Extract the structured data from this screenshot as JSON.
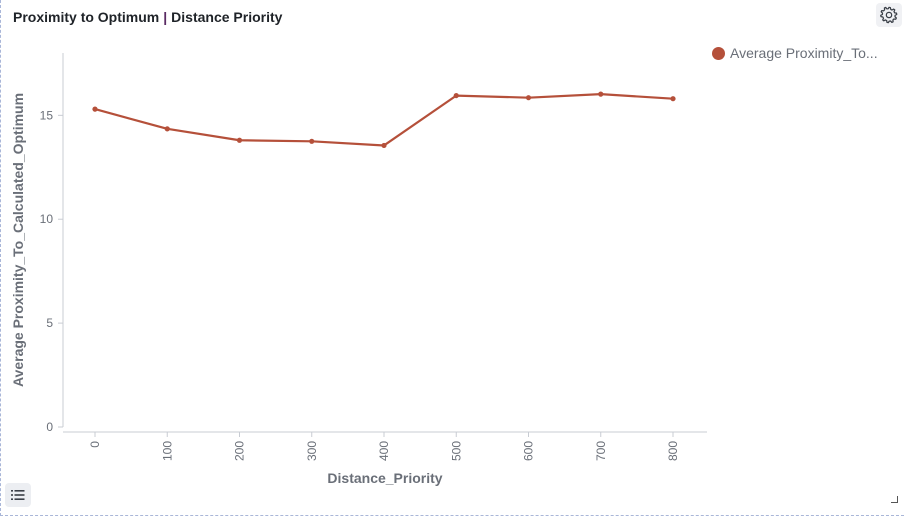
{
  "panel": {
    "title_left": "Proximity to Optimum",
    "title_sep": "|",
    "title_right": "Distance Priority"
  },
  "icons": {
    "settings": "gear-icon",
    "list": "list-icon"
  },
  "chart_data": {
    "type": "line",
    "x": [
      0,
      100,
      200,
      300,
      400,
      500,
      600,
      700,
      800
    ],
    "series": [
      {
        "name": "Average Proximity_To...",
        "color": "#b5503a",
        "values": [
          15.3,
          14.35,
          13.8,
          13.75,
          13.55,
          15.95,
          15.85,
          16.02,
          15.8
        ]
      }
    ],
    "xlabel": "Distance_Priority",
    "ylabel": "Average Proximity_To_Calculated_Optimum",
    "xticks": [
      "0",
      "100",
      "200",
      "300",
      "400",
      "500",
      "600",
      "700",
      "800"
    ],
    "yticks": [
      "0",
      "5",
      "10",
      "15"
    ],
    "ylim": [
      0,
      18
    ],
    "grid": false,
    "legend": "top-right"
  }
}
